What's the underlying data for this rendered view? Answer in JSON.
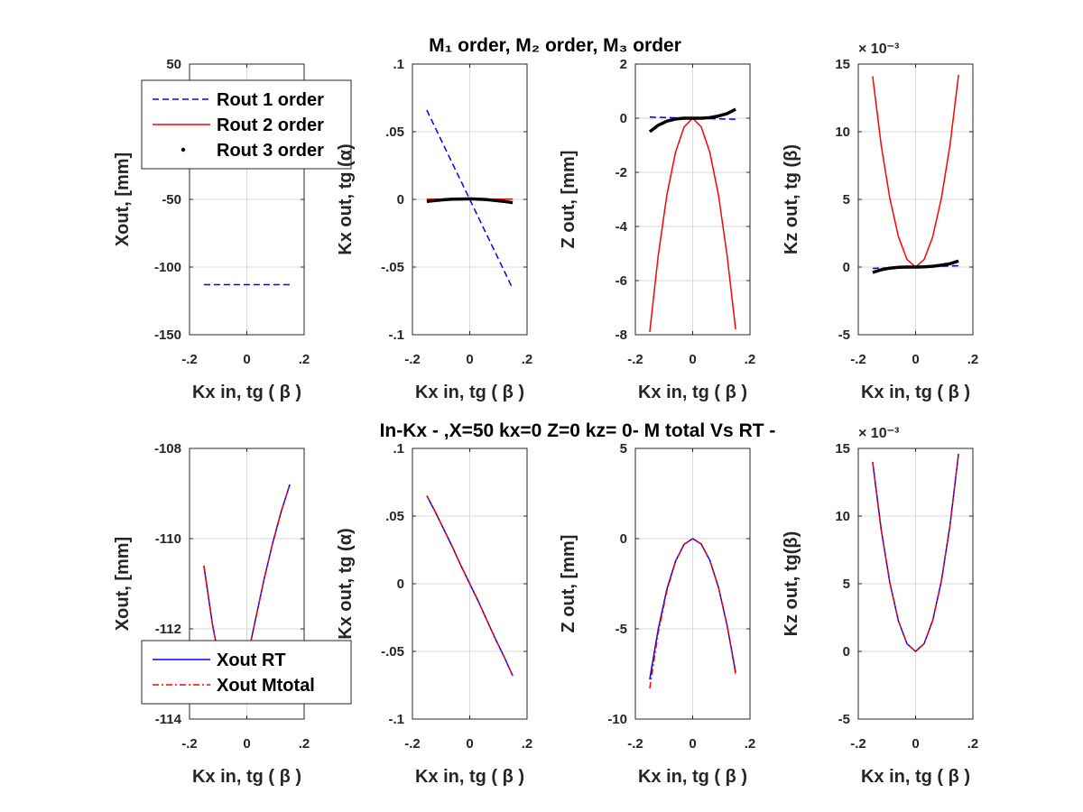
{
  "figure": {
    "title_top": "M₁ order, M₂ order, M₃ order",
    "title_bottom": "In-Kx - ,X=50  kx=0  Z=0   kz= 0- M total Vs RT -"
  },
  "colors": {
    "blue": "#0000ff",
    "red": "#ff0000",
    "black": "#000000",
    "grid": "#d9d9d9",
    "axis": "#262626"
  },
  "chart_data": [
    {
      "type": "line",
      "xlabel": "Kx in,  tg ( β )",
      "ylabel": "Xout, [mm]",
      "xlim": [
        -0.2,
        0.2
      ],
      "ylim": [
        -150,
        50
      ],
      "xticks": [
        -0.2,
        0,
        0.2
      ],
      "yticks": [
        -150,
        -100,
        -50,
        50
      ],
      "x": [
        -0.15,
        -0.12,
        -0.09,
        -0.06,
        -0.03,
        0,
        0.03,
        0.06,
        0.09,
        0.12,
        0.15
      ],
      "legend": {
        "location": "top-left",
        "entries": [
          "Rout 1 order",
          "Rout 2 order",
          "Rout 3 order"
        ]
      },
      "series": [
        {
          "name": "Rout 1 order",
          "style": "dashed",
          "color": "#0000ff",
          "values": [
            -113,
            -113,
            -113,
            -113,
            -113,
            -113,
            -113,
            -113,
            -113,
            -113,
            -113
          ]
        },
        {
          "name": "Rout 2 order",
          "style": "solid",
          "color": "#ff0000",
          "values": [
            2.6,
            1.66,
            0.94,
            0.42,
            0.1,
            0,
            0.1,
            0.42,
            0.94,
            1.66,
            2.6
          ]
        },
        {
          "name": "Rout 3 order",
          "style": "thick",
          "color": "#000000",
          "values": [
            -0.6,
            -0.3,
            -0.13,
            -0.04,
            -0.01,
            0,
            0.01,
            0.04,
            0.13,
            0.3,
            0.6
          ]
        }
      ]
    },
    {
      "type": "line",
      "xlabel": "Kx in,  tg ( β )",
      "ylabel": "Kx out,  tg (α)",
      "xlim": [
        -0.2,
        0.2
      ],
      "ylim": [
        -0.1,
        0.1
      ],
      "xticks": [
        -0.2,
        0,
        0.2
      ],
      "yticks": [
        -0.1,
        -0.05,
        0,
        0.05,
        0.1
      ],
      "x": [
        -0.15,
        -0.12,
        -0.09,
        -0.06,
        -0.03,
        0,
        0.03,
        0.06,
        0.09,
        0.12,
        0.15
      ],
      "series": [
        {
          "style": "dashed",
          "color": "#0000ff",
          "values": [
            0.066,
            0.0528,
            0.0396,
            0.0264,
            0.0132,
            0,
            -0.0132,
            -0.0264,
            -0.0396,
            -0.0528,
            -0.066
          ]
        },
        {
          "style": "solid",
          "color": "#ff0000",
          "values": [
            0.0003,
            0.0002,
            0.0001,
            5e-05,
            1e-05,
            0,
            1e-05,
            5e-05,
            0.0001,
            0.0002,
            0.0003
          ]
        },
        {
          "style": "thick",
          "color": "#000000",
          "values": [
            -0.0015,
            -0.0008,
            -0.0003,
            0.0001,
            0.0003,
            0.0004,
            0.0002,
            -0.0002,
            -0.0008,
            -0.0015,
            -0.0024
          ]
        }
      ]
    },
    {
      "type": "line",
      "xlabel": "Kx in,  tg ( β )",
      "ylabel": "Z out, [mm]",
      "xlim": [
        -0.2,
        0.2
      ],
      "ylim": [
        -8,
        2
      ],
      "xticks": [
        -0.2,
        0,
        0.2
      ],
      "yticks": [
        -8,
        -6,
        -4,
        -2,
        0,
        2
      ],
      "x": [
        -0.15,
        -0.12,
        -0.09,
        -0.06,
        -0.03,
        0,
        0.03,
        0.06,
        0.09,
        0.12,
        0.15
      ],
      "series": [
        {
          "style": "dashed",
          "color": "#0000ff",
          "values": [
            0.04,
            0.032,
            0.024,
            0.016,
            0.008,
            0,
            -0.008,
            -0.016,
            -0.024,
            -0.032,
            -0.04
          ]
        },
        {
          "style": "solid",
          "color": "#ff0000",
          "values": [
            -7.9,
            -5.06,
            -2.84,
            -1.26,
            -0.32,
            0,
            -0.32,
            -1.26,
            -2.84,
            -5.06,
            -7.8
          ]
        },
        {
          "style": "thick",
          "color": "#000000",
          "values": [
            -0.5,
            -0.26,
            -0.11,
            -0.03,
            0,
            0,
            0,
            0.02,
            0.08,
            0.17,
            0.33
          ]
        }
      ]
    },
    {
      "type": "line",
      "xlabel": "Kx in,  tg ( β )",
      "ylabel": "Kz  out, tg (β)",
      "exponent": "× 10⁻³",
      "xlim": [
        -0.2,
        0.2
      ],
      "ylim": [
        -5,
        15
      ],
      "xticks": [
        -0.2,
        0,
        0.2
      ],
      "yticks": [
        -5,
        0,
        5,
        10,
        15
      ],
      "x": [
        -0.15,
        -0.12,
        -0.09,
        -0.06,
        -0.03,
        0,
        0.03,
        0.06,
        0.09,
        0.12,
        0.15
      ],
      "series": [
        {
          "style": "dashed",
          "color": "#0000ff",
          "values": [
            -0.1,
            -0.08,
            -0.06,
            -0.04,
            -0.02,
            0,
            0.02,
            0.04,
            0.06,
            0.08,
            0.1
          ]
        },
        {
          "style": "solid",
          "color": "#ff0000",
          "values": [
            14.1,
            9.0,
            5.1,
            2.25,
            0.56,
            0,
            0.56,
            2.25,
            5.1,
            9.0,
            14.2
          ]
        },
        {
          "style": "thick",
          "color": "#000000",
          "values": [
            -0.4,
            -0.2,
            -0.08,
            -0.02,
            0,
            0,
            0.02,
            0.06,
            0.14,
            0.25,
            0.45
          ]
        }
      ]
    },
    {
      "type": "line",
      "xlabel": "Kx in,  tg ( β )",
      "ylabel": "Xout, [mm]",
      "xlim": [
        -0.2,
        0.2
      ],
      "ylim": [
        -114,
        -108
      ],
      "xticks": [
        -0.2,
        0,
        0.2
      ],
      "yticks": [
        -114,
        -112,
        -110,
        -108
      ],
      "x": [
        -0.15,
        -0.12,
        -0.09,
        -0.06,
        -0.03,
        0,
        0.03,
        0.06,
        0.09,
        0.12,
        0.15
      ],
      "legend": {
        "location": "bottom-left",
        "entries": [
          "Xout RT",
          "Xout  Mtotal"
        ]
      },
      "series": [
        {
          "name": "Xout RT",
          "style": "solid",
          "color": "#0000ff",
          "values": [
            -110.6,
            -111.9,
            -112.9,
            -113.6,
            -113.5,
            -112.7,
            -111.8,
            -110.9,
            -110.1,
            -109.4,
            -108.8
          ]
        },
        {
          "name": "Xout  Mtotal",
          "style": "dashdot",
          "color": "#ff0000",
          "values": [
            -110.6,
            -111.9,
            -112.9,
            -113.6,
            -113.5,
            -112.7,
            -111.8,
            -110.9,
            -110.1,
            -109.4,
            -108.8
          ]
        }
      ]
    },
    {
      "type": "line",
      "xlabel": "Kx in,  tg ( β )",
      "ylabel": "Kx out,  tg (α)",
      "xlim": [
        -0.2,
        0.2
      ],
      "ylim": [
        -0.1,
        0.1
      ],
      "xticks": [
        -0.2,
        0,
        0.2
      ],
      "yticks": [
        -0.1,
        -0.05,
        0,
        0.05,
        0.1
      ],
      "x": [
        -0.15,
        -0.12,
        -0.09,
        -0.06,
        -0.03,
        0,
        0.03,
        0.06,
        0.09,
        0.12,
        0.15
      ],
      "series": [
        {
          "style": "solid",
          "color": "#0000ff",
          "values": [
            0.065,
            0.053,
            0.04,
            0.027,
            0.013,
            0,
            -0.013,
            -0.027,
            -0.041,
            -0.054,
            -0.068
          ]
        },
        {
          "style": "dashdot",
          "color": "#ff0000",
          "values": [
            0.065,
            0.053,
            0.04,
            0.027,
            0.013,
            0,
            -0.013,
            -0.027,
            -0.041,
            -0.054,
            -0.068
          ]
        }
      ]
    },
    {
      "type": "line",
      "xlabel": "Kx in,  tg ( β )",
      "ylabel": "Z out, [mm]",
      "xlim": [
        -0.2,
        0.2
      ],
      "ylim": [
        -10,
        5
      ],
      "xticks": [
        -0.2,
        0,
        0.2
      ],
      "yticks": [
        -10,
        -5,
        0,
        5
      ],
      "x": [
        -0.15,
        -0.12,
        -0.09,
        -0.06,
        -0.03,
        0,
        0.03,
        0.06,
        0.09,
        0.12,
        0.15
      ],
      "series": [
        {
          "style": "solid",
          "color": "#0000ff",
          "values": [
            -7.8,
            -5.0,
            -2.8,
            -1.25,
            -0.31,
            0,
            -0.3,
            -1.2,
            -2.7,
            -4.8,
            -7.4
          ]
        },
        {
          "style": "dashdot",
          "color": "#ff0000",
          "values": [
            -8.3,
            -5.2,
            -2.9,
            -1.27,
            -0.32,
            0,
            -0.3,
            -1.2,
            -2.7,
            -4.8,
            -7.5
          ]
        }
      ]
    },
    {
      "type": "line",
      "xlabel": "Kx in,  tg ( β )",
      "ylabel": "Kz out, tg(β)",
      "exponent": "× 10⁻³",
      "xlim": [
        -0.2,
        0.2
      ],
      "ylim": [
        -5,
        15
      ],
      "xticks": [
        -0.2,
        0,
        0.2
      ],
      "yticks": [
        -5,
        0,
        5,
        10,
        15
      ],
      "x": [
        -0.15,
        -0.12,
        -0.09,
        -0.06,
        -0.03,
        0,
        0.03,
        0.06,
        0.09,
        0.12,
        0.15
      ],
      "series": [
        {
          "style": "solid",
          "color": "#0000ff",
          "values": [
            14.0,
            9.0,
            5.1,
            2.25,
            0.56,
            0,
            0.58,
            2.3,
            5.2,
            9.3,
            14.6
          ]
        },
        {
          "style": "dashdot",
          "color": "#ff0000",
          "values": [
            14.0,
            9.0,
            5.1,
            2.25,
            0.56,
            0,
            0.58,
            2.3,
            5.2,
            9.3,
            14.6
          ]
        }
      ]
    }
  ]
}
